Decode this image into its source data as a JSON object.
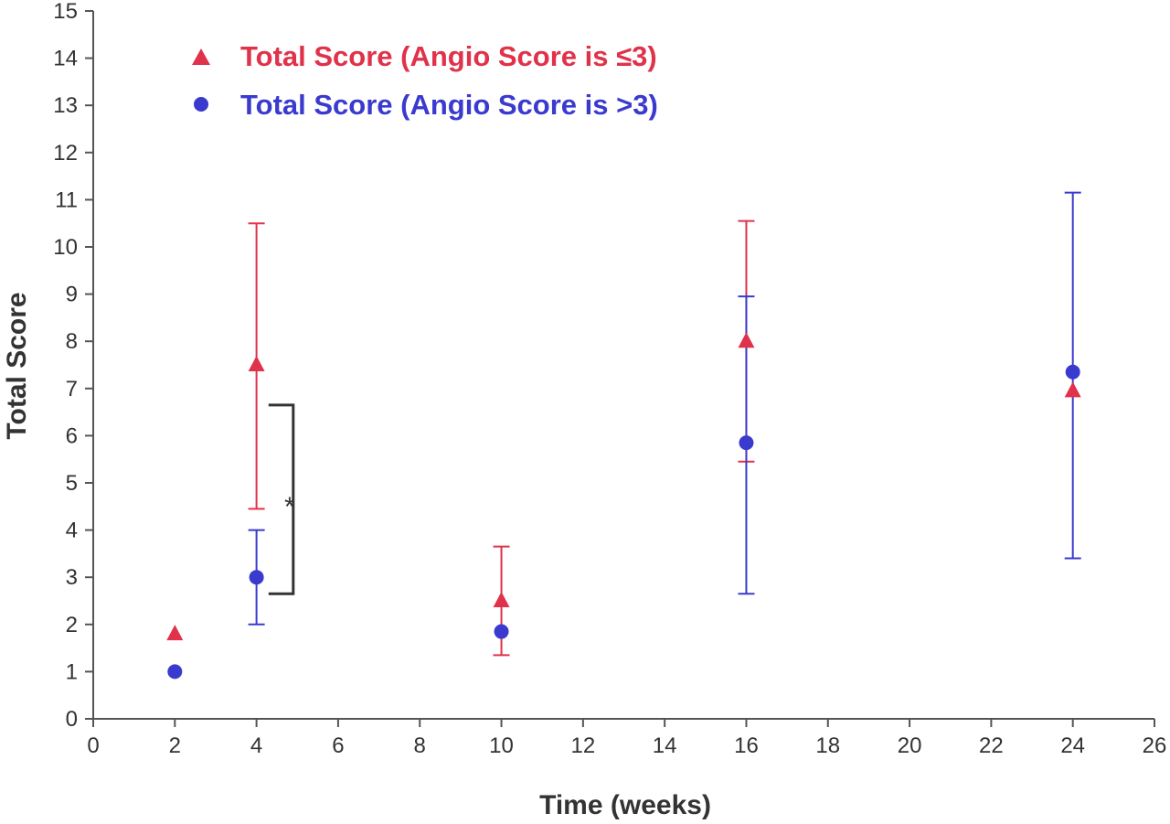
{
  "chart_data": {
    "type": "scatter",
    "title": "",
    "xlabel": "Time (weeks)",
    "ylabel": "Total Score",
    "xlim": [
      0,
      26
    ],
    "ylim": [
      0,
      15
    ],
    "xticks": [
      0,
      2,
      4,
      6,
      8,
      10,
      12,
      14,
      16,
      18,
      20,
      22,
      24,
      26
    ],
    "yticks": [
      0,
      1,
      2,
      3,
      4,
      5,
      6,
      7,
      8,
      9,
      10,
      11,
      12,
      13,
      14,
      15
    ],
    "grid": false,
    "legend_position": "top-left",
    "series": [
      {
        "name": "Total Score (Angio Score is ≤3)",
        "marker": "triangle",
        "color": "#e0324a",
        "points": [
          {
            "x": 2,
            "y": 1.8,
            "err_low": null,
            "err_high": null
          },
          {
            "x": 4,
            "y": 7.5,
            "err_low": 4.45,
            "err_high": 10.5
          },
          {
            "x": 10,
            "y": 2.5,
            "err_low": 1.35,
            "err_high": 3.65
          },
          {
            "x": 16,
            "y": 8.0,
            "err_low": 5.45,
            "err_high": 10.55
          },
          {
            "x": 24,
            "y": 6.95,
            "err_low": null,
            "err_high": null
          }
        ]
      },
      {
        "name": "Total Score (Angio Score is >3)",
        "marker": "circle",
        "color": "#3a3acf",
        "points": [
          {
            "x": 2,
            "y": 1.0,
            "err_low": null,
            "err_high": null
          },
          {
            "x": 4,
            "y": 3.0,
            "err_low": 2.0,
            "err_high": 4.0
          },
          {
            "x": 10,
            "y": 1.85,
            "err_low": null,
            "err_high": null
          },
          {
            "x": 16,
            "y": 5.85,
            "err_low": 2.65,
            "err_high": 8.95
          },
          {
            "x": 24,
            "y": 7.35,
            "err_low": 3.4,
            "err_high": 11.15
          }
        ]
      }
    ],
    "annotations": [
      {
        "text": "*",
        "type": "significance-bracket",
        "x": 4.9,
        "y_from": 2.65,
        "y_to": 6.65
      }
    ],
    "colors": {
      "axis": "#555555",
      "text": "#333333",
      "bracket": "#333333"
    }
  }
}
